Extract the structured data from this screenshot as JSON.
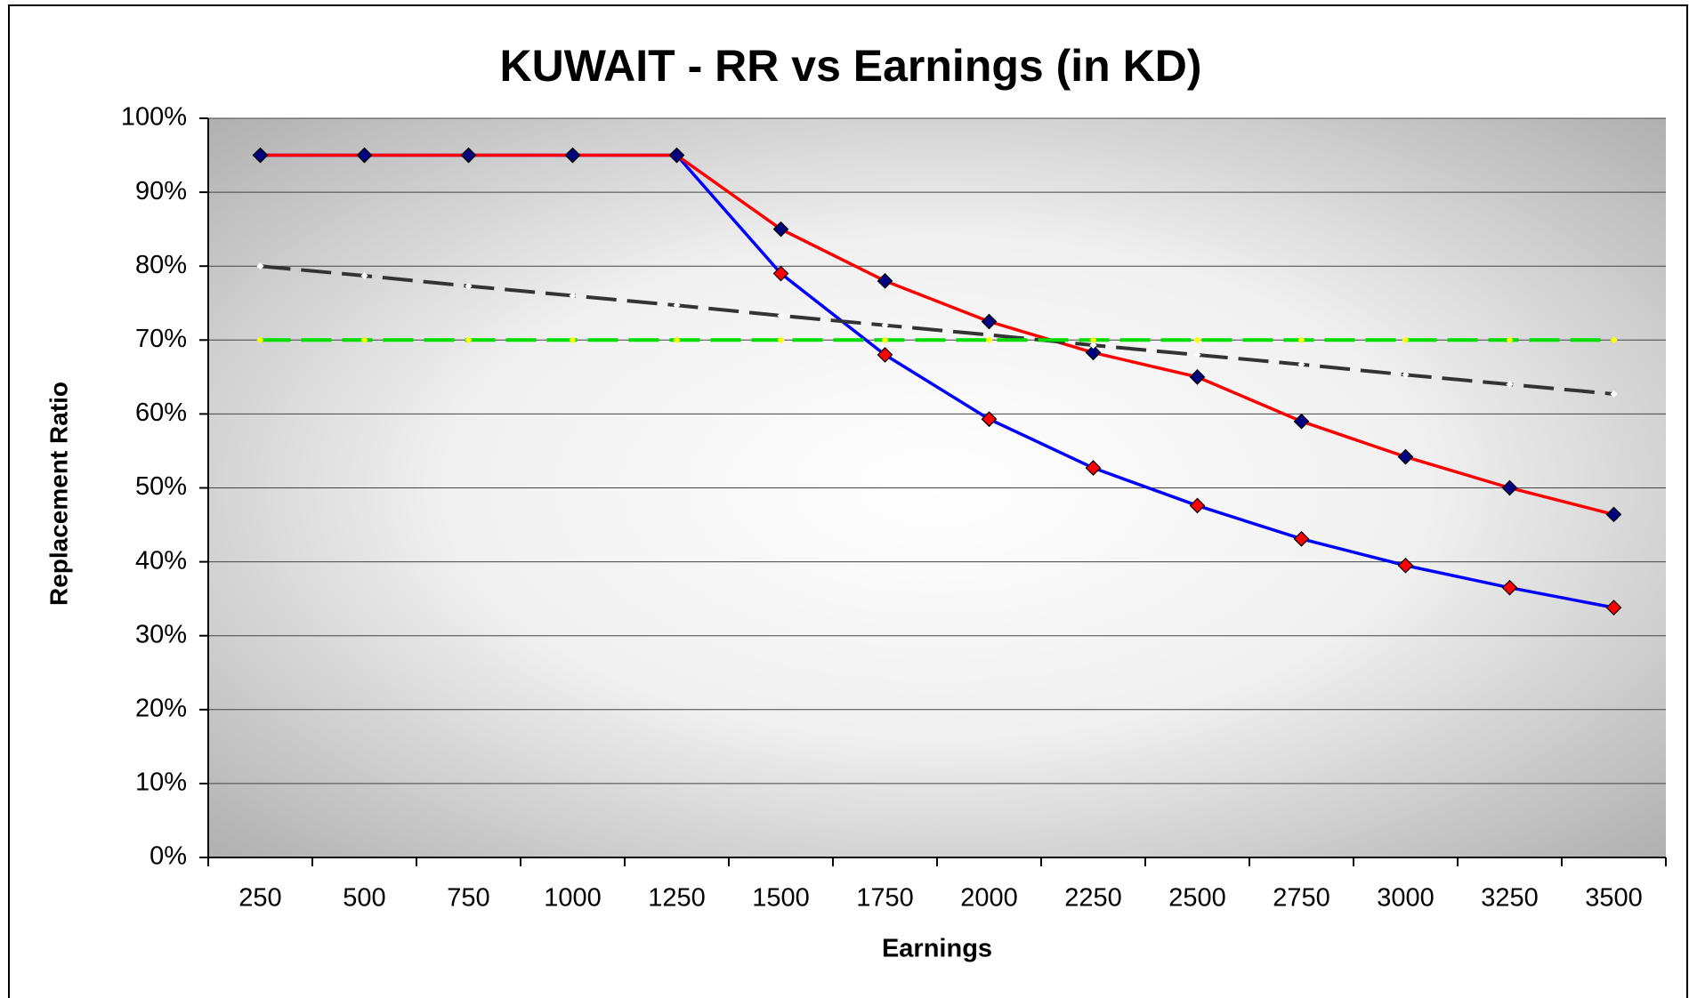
{
  "chart_data": {
    "type": "line",
    "title": "KUWAIT  -  RR vs Earnings (in KD)",
    "x_label": "Earnings",
    "y_label": "Replacement Ratio",
    "categories": [
      250,
      500,
      750,
      1000,
      1250,
      1500,
      1750,
      2000,
      2250,
      2500,
      2750,
      3000,
      3250,
      3500
    ],
    "series": [
      {
        "color": "#0000ff",
        "marker_color": "#ff0000",
        "dash": false,
        "values": [
          95,
          95,
          95,
          95,
          95,
          79,
          68,
          59.3,
          52.7,
          47.6,
          43.1,
          39.5,
          36.5,
          33.8
        ]
      },
      {
        "color": "#ff0000",
        "marker_color": "#000080",
        "dash": false,
        "values": [
          95,
          95,
          95,
          95,
          95,
          85,
          78,
          72.5,
          68.3,
          65,
          59,
          54.2,
          50,
          46.4
        ]
      },
      {
        "color": "#333333",
        "marker_color": "#ffffff",
        "dash": true,
        "values": [
          80,
          78.7,
          77.3,
          76,
          74.7,
          73.3,
          72,
          70.7,
          69.3,
          68,
          66.7,
          65.3,
          64,
          62.7
        ]
      },
      {
        "color": "#00dd00",
        "marker_color": "#ffff00",
        "dash": true,
        "values": [
          70,
          70,
          70,
          70,
          70,
          70,
          70,
          70,
          70,
          70,
          70,
          70,
          70,
          70
        ]
      }
    ],
    "ylim": [
      0,
      100
    ],
    "yticks": [
      {
        "value": 0,
        "label": "0%"
      },
      {
        "value": 10,
        "label": "10%"
      },
      {
        "value": 20,
        "label": "20%"
      },
      {
        "value": 30,
        "label": "30%"
      },
      {
        "value": 40,
        "label": "40%"
      },
      {
        "value": 50,
        "label": "50%"
      },
      {
        "value": 60,
        "label": "60%"
      },
      {
        "value": 70,
        "label": "70%"
      },
      {
        "value": 80,
        "label": "80%"
      },
      {
        "value": 90,
        "label": "90%"
      },
      {
        "value": 100,
        "label": "100%"
      }
    ],
    "grid": true
  }
}
